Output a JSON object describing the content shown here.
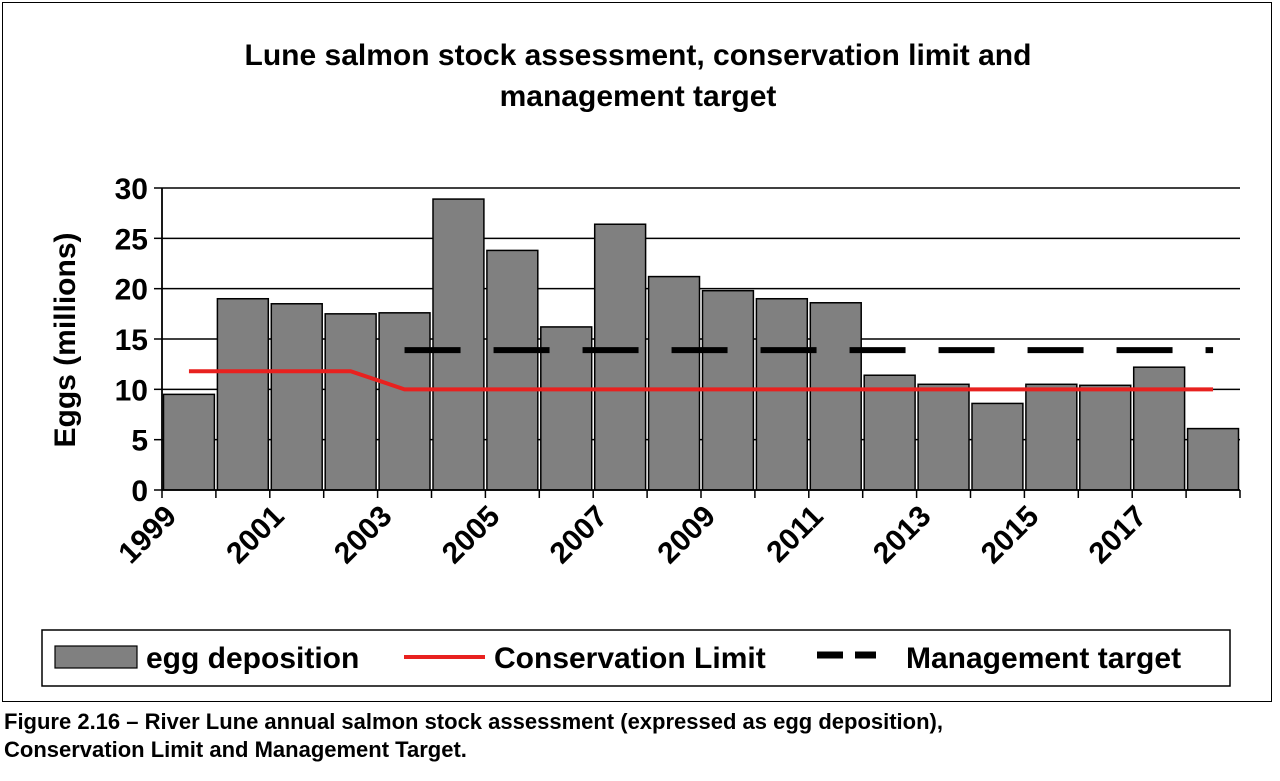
{
  "chart_data": {
    "type": "bar",
    "title_lines": [
      "Lune salmon stock assessment, conservation limit and",
      "management target"
    ],
    "ylabel": "Eggs (millions)",
    "xlabel": "",
    "ylim": [
      0,
      30
    ],
    "yticks": [
      0,
      5,
      10,
      15,
      20,
      25,
      30
    ],
    "grid": true,
    "legend_position": "bottom",
    "x": [
      1999,
      2000,
      2001,
      2002,
      2003,
      2004,
      2005,
      2006,
      2007,
      2008,
      2009,
      2010,
      2011,
      2012,
      2013,
      2014,
      2015,
      2016,
      2017,
      2018
    ],
    "xtick_labels": [
      "1999",
      "2001",
      "2003",
      "2005",
      "2007",
      "2009",
      "2011",
      "2013",
      "2015",
      "2017"
    ],
    "series": [
      {
        "name": "egg deposition",
        "kind": "bar",
        "color": "#808080",
        "values": [
          9.5,
          19.0,
          18.5,
          17.5,
          17.6,
          28.9,
          23.8,
          16.2,
          26.4,
          21.2,
          19.8,
          19.0,
          18.6,
          11.4,
          10.5,
          8.6,
          10.5,
          10.4,
          12.2,
          6.1
        ]
      },
      {
        "name": "Conservation Limit",
        "kind": "line",
        "color": "#e8211f",
        "values": [
          11.8,
          11.8,
          11.8,
          11.8,
          10.0,
          10.0,
          10.0,
          10.0,
          10.0,
          10.0,
          10.0,
          10.0,
          10.0,
          10.0,
          10.0,
          10.0,
          10.0,
          10.0,
          10.0,
          10.0
        ]
      },
      {
        "name": "Management target",
        "kind": "dashed-line",
        "color": "#000000",
        "values": [
          null,
          null,
          null,
          null,
          13.9,
          13.9,
          13.9,
          13.9,
          13.9,
          13.9,
          13.9,
          13.9,
          13.9,
          13.9,
          13.9,
          13.9,
          13.9,
          13.9,
          13.9,
          13.9
        ]
      }
    ]
  },
  "caption": {
    "line1": "Figure 2.16 – River Lune annual salmon stock assessment (expressed as egg deposition),",
    "line2": "Conservation Limit and Management Target."
  }
}
